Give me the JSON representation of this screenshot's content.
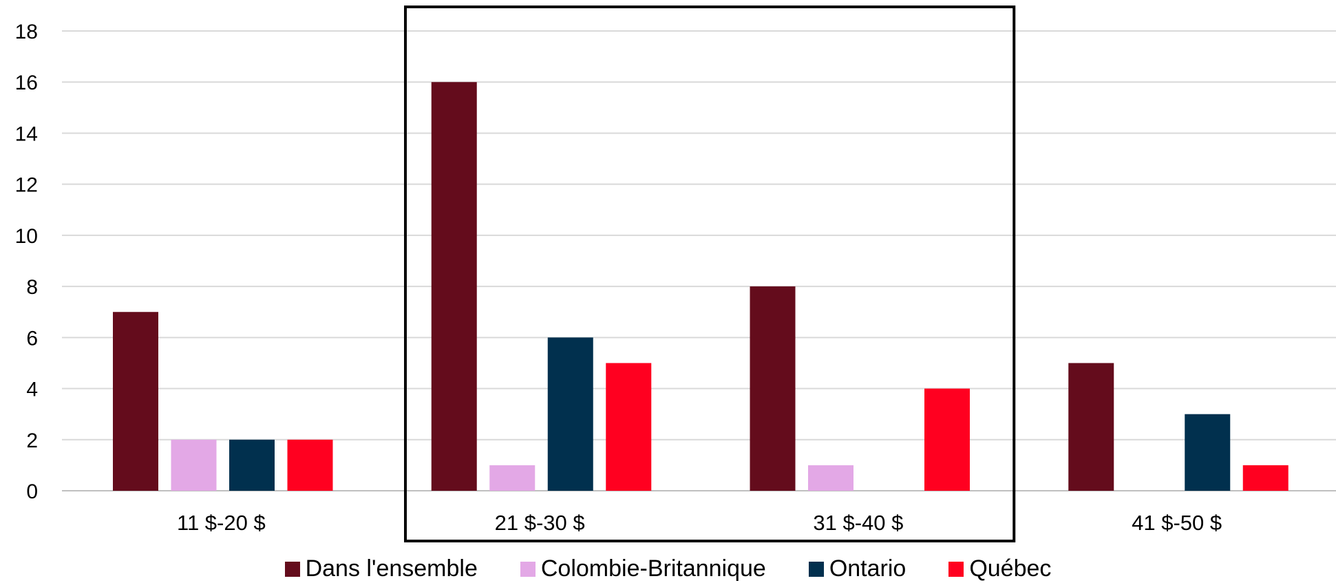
{
  "chart_data": {
    "type": "bar",
    "categories": [
      "11 $-20 $",
      "21 $-30 $",
      "31 $-40 $",
      "41 $-50 $"
    ],
    "series": [
      {
        "name": "Dans l'ensemble",
        "color": "#640c1c",
        "values": [
          7,
          16,
          8,
          5
        ]
      },
      {
        "name": "Colombie-Britannique",
        "color": "#e3a8e6",
        "values": [
          2,
          1,
          1,
          0
        ]
      },
      {
        "name": "Ontario",
        "color": "#01304e",
        "values": [
          2,
          6,
          0,
          3
        ]
      },
      {
        "name": "Québec",
        "color": "#ff0020",
        "values": [
          2,
          5,
          4,
          1
        ]
      }
    ],
    "ylim": [
      0,
      18
    ],
    "yticks": [
      "0",
      "2",
      "4",
      "6",
      "8",
      "10",
      "12",
      "14",
      "16",
      "18"
    ],
    "grid": true,
    "legend_position": "bottom",
    "highlight": {
      "categories": [
        "21 $-30 $",
        "31 $-40 $"
      ],
      "style": "black outline box"
    }
  }
}
